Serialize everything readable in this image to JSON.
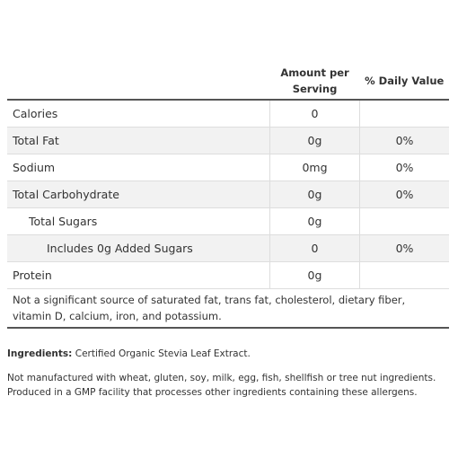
{
  "table": {
    "header": [
      "Amount per Serving",
      "% Daily Value"
    ],
    "rows": [
      [
        "Calories",
        "0",
        null
      ],
      [
        "Total Fat",
        "0g",
        "0%"
      ],
      [
        "Sodium",
        "0mg",
        "0%"
      ],
      [
        "Total Carbohydrate",
        "0g",
        "0%"
      ],
      [
        "Total Sugars",
        "0g",
        null
      ],
      [
        "Includes 0g Added Sugars",
        "0",
        "0%"
      ],
      [
        "Protein",
        "0g",
        null
      ]
    ],
    "footnote": "Not a significant source of saturated fat, trans fat, cholesterol, dietary fiber, vitamin D, calcium, iron, and potassium."
  },
  "ingredients": {
    "label": "Ingredients:",
    "text": "Certified Organic Stevia Leaf Extract."
  },
  "allergens": "Not manufactured with wheat, gluten, soy, milk, egg, fish, shellfish or tree nut ingredients. Produced in a GMP facility that processes other ingredients containing these allergens."
}
